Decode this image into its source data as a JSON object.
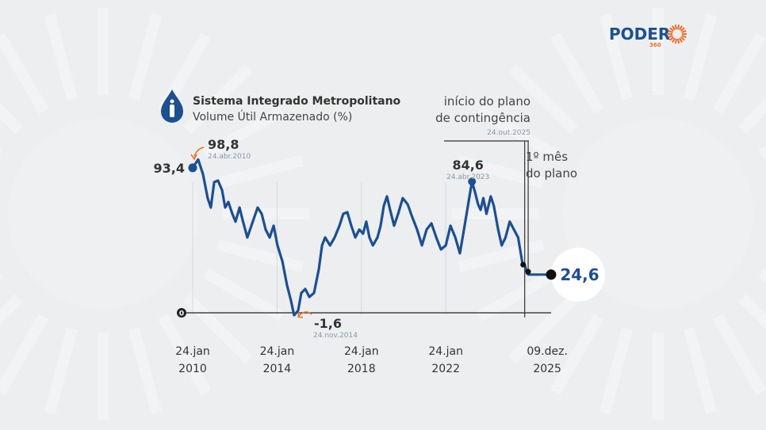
{
  "logo": {
    "text": "PODER",
    "sub": "360"
  },
  "colors": {
    "line": "#1d4f91",
    "accent": "#f26b21",
    "text": "#333333",
    "muted": "#8a98aa"
  },
  "chart_data": {
    "type": "line",
    "title": "Sistema Integrado Metropolitano",
    "subtitle": "Volume Útil Armazenado (%)",
    "xlabel": "",
    "ylabel": "",
    "xlim": [
      2010.07,
      2026.3
    ],
    "ylim": [
      -5,
      100
    ],
    "zero_label": "0",
    "x_ticks": [
      {
        "x": 2010.07,
        "line1": "24.jan",
        "line2": "2010"
      },
      {
        "x": 2014.07,
        "line1": "24.jan",
        "line2": "2014"
      },
      {
        "x": 2018.07,
        "line1": "24.jan",
        "line2": "2018"
      },
      {
        "x": 2022.07,
        "line1": "24.jan",
        "line2": "2022"
      },
      {
        "x": 2025.94,
        "line1": "09.dez.",
        "line2": "2025"
      }
    ],
    "series": [
      {
        "name": "Volume Útil Armazenado (%)",
        "x": [
          2010.07,
          2010.33,
          2010.56,
          2010.78,
          2010.93,
          2011.09,
          2011.27,
          2011.46,
          2011.61,
          2011.76,
          2011.95,
          2012.1,
          2012.29,
          2012.44,
          2012.66,
          2012.89,
          2013.15,
          2013.34,
          2013.53,
          2013.72,
          2013.91,
          2014.09,
          2014.32,
          2014.54,
          2014.73,
          2014.88,
          2015.07,
          2015.22,
          2015.41,
          2015.6,
          2015.82,
          2016.05,
          2016.2,
          2016.35,
          2016.58,
          2016.8,
          2017.03,
          2017.21,
          2017.4,
          2017.59,
          2017.78,
          2017.97,
          2018.15,
          2018.3,
          2018.45,
          2018.61,
          2018.83,
          2018.98,
          2019.13,
          2019.28,
          2019.43,
          2019.62,
          2019.81,
          2020.03,
          2020.26,
          2020.49,
          2020.71,
          2020.94,
          2021.16,
          2021.39,
          2021.62,
          2021.84,
          2022.07,
          2022.29,
          2022.52,
          2022.74,
          2022.93,
          2023.31,
          2023.45,
          2023.6,
          2023.72,
          2023.85,
          2024.0,
          2024.2,
          2024.35,
          2024.55,
          2024.72,
          2024.9,
          2025.1,
          2025.3,
          2025.5,
          2025.7,
          2025.81,
          2025.9,
          2025.94
        ],
        "y": [
          93.4,
          98.8,
          89.3,
          73.9,
          67.8,
          84.2,
          85.2,
          79.1,
          67.8,
          71.4,
          63.8,
          58.7,
          67.8,
          59.7,
          48.5,
          57.6,
          67.8,
          63.8,
          53.6,
          48.5,
          56.1,
          43.4,
          33.2,
          17.9,
          7.7,
          -1.6,
          1.5,
          12.8,
          15.3,
          10.2,
          12.8,
          28.1,
          43.4,
          48.5,
          43.4,
          48.5,
          56.1,
          63.8,
          64.8,
          56.1,
          48.5,
          53.6,
          51.0,
          58.7,
          48.5,
          43.4,
          48.5,
          56.1,
          68.9,
          75.0,
          66.3,
          56.1,
          63.8,
          73.9,
          69.9,
          61.2,
          53.6,
          43.4,
          53.6,
          57.6,
          48.5,
          40.8,
          43.4,
          56.1,
          48.5,
          38.3,
          53.6,
          84.6,
          78.0,
          69.9,
          66.3,
          73.9,
          63.8,
          75.0,
          68.9,
          53.6,
          43.4,
          48.5,
          58.7,
          53.6,
          48.5,
          32.1,
          31.0,
          26.5,
          24.6
        ]
      }
    ],
    "annotations": [
      {
        "id": "start",
        "x": 2010.07,
        "y": 93.4,
        "label": "93,4"
      },
      {
        "id": "max",
        "x": 2010.33,
        "y": 98.8,
        "label": "98,8",
        "date": "24.abr.2010"
      },
      {
        "id": "min",
        "x": 2014.88,
        "y": -1.6,
        "label": "-1,6",
        "date": "24.nov.2014"
      },
      {
        "id": "peak2023",
        "x": 2023.31,
        "y": 84.6,
        "label": "84,6",
        "date": "24.abr.2023"
      },
      {
        "id": "last",
        "x": 2025.94,
        "y": 24.6,
        "label": "24,6"
      }
    ],
    "events": [
      {
        "x": 2025.81,
        "label1": "início do plano",
        "label2": "de contingência",
        "date": "24.out.2025"
      },
      {
        "x": 2025.9,
        "label1": "1º mês",
        "label2": "do plano"
      }
    ]
  }
}
